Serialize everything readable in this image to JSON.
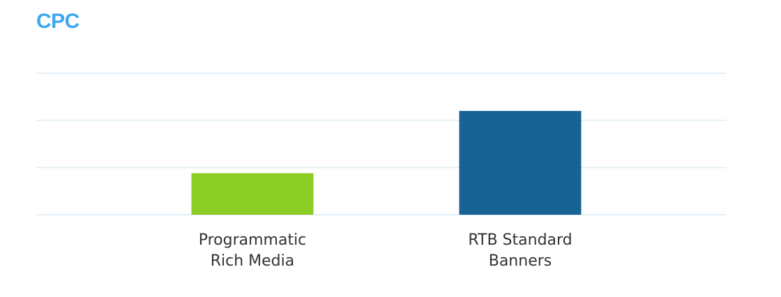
{
  "chart_data": {
    "type": "bar",
    "title": "CPC",
    "xlabel": "",
    "ylabel": "",
    "categories": [
      [
        "Programmatic",
        "Rich Media"
      ],
      [
        "RTB Standard",
        "Banners"
      ]
    ],
    "values": [
      0.88,
      2.2
    ],
    "ylim": [
      0,
      3
    ],
    "y_ticks": [
      0,
      1,
      2,
      3
    ],
    "grid": true,
    "tick_labels_shown": false,
    "colors": {
      "title": "#3ea8ee",
      "grid": "#dcebf5",
      "bars": [
        "#8cce26",
        "#186394"
      ],
      "label": "#333333"
    }
  }
}
